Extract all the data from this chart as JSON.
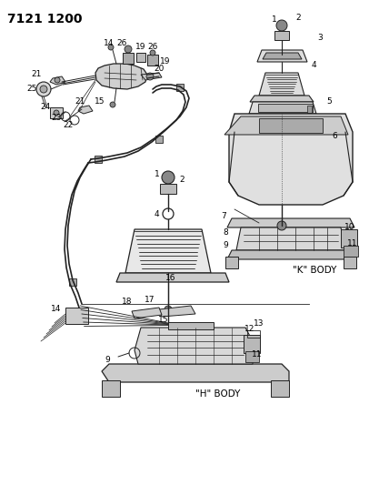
{
  "title": "7121 1200",
  "bg": "#ffffff",
  "lc": "#222222",
  "tc": "#000000",
  "figsize": [
    4.28,
    5.33
  ],
  "dpi": 100,
  "k_body_label": "\"K\" BODY",
  "h_body_label": "\"H\" BODY",
  "title_fontsize": 10,
  "label_fontsize": 6.5
}
